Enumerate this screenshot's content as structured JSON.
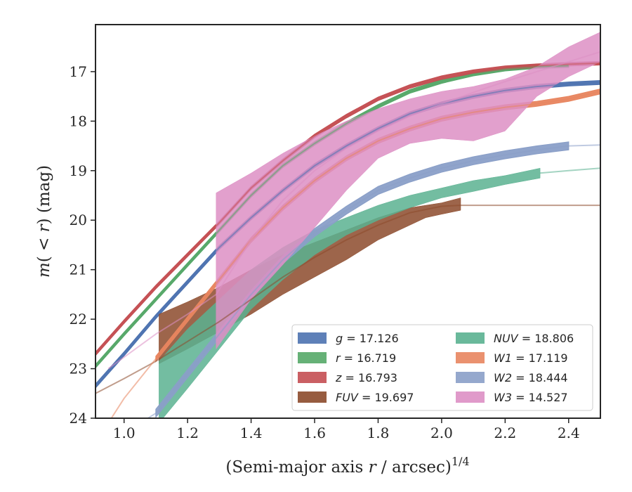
{
  "chart_data": {
    "type": "line",
    "xlabel": "(Semi-major axis r / arcsec)^1/4",
    "ylabel": "m(< r) (mag)",
    "xlim": [
      0.91,
      2.5
    ],
    "ylim": [
      24.0,
      16.05
    ],
    "y_inverted": true,
    "x_ticks": [
      "1.0",
      "1.2",
      "1.4",
      "1.6",
      "1.8",
      "2.0",
      "2.2",
      "2.4"
    ],
    "y_ticks": [
      "17",
      "18",
      "19",
      "20",
      "21",
      "22",
      "23",
      "24"
    ],
    "grid": false,
    "legend": {
      "placement": "lower-right",
      "columns": 2
    },
    "series": [
      {
        "name": "g = 17.126",
        "label_var": "g",
        "label_val": "= 17.126",
        "color": "#4c72b0",
        "band": {
          "x": [
            0.91,
            1.0,
            1.1,
            1.2,
            1.3,
            1.4,
            1.5,
            1.6,
            1.7,
            1.8,
            1.9,
            2.0,
            2.1,
            2.2,
            2.3,
            2.4,
            2.5
          ],
          "y": [
            23.35,
            22.7,
            21.95,
            21.25,
            20.55,
            19.95,
            19.4,
            18.9,
            18.5,
            18.15,
            17.85,
            17.65,
            17.5,
            17.38,
            17.3,
            17.25,
            17.22
          ],
          "w": 0.08
        },
        "model": {
          "x": [
            0.91,
            1.0,
            1.1,
            1.2,
            1.3,
            1.4,
            1.5,
            1.6,
            1.7,
            1.8,
            1.9,
            2.0,
            2.1,
            2.2,
            2.3,
            2.4,
            2.5
          ],
          "y": [
            23.35,
            22.7,
            21.95,
            21.25,
            20.55,
            19.95,
            19.4,
            18.9,
            18.5,
            18.15,
            17.85,
            17.65,
            17.5,
            17.38,
            17.3,
            17.25,
            17.22
          ]
        }
      },
      {
        "name": "r = 16.719",
        "label_var": "r",
        "label_val": "= 16.719",
        "color": "#55a868",
        "band": {
          "x": [
            0.91,
            1.0,
            1.1,
            1.2,
            1.3,
            1.4,
            1.5,
            1.6,
            1.7,
            1.8,
            1.9,
            2.0,
            2.1,
            2.2,
            2.3,
            2.4
          ],
          "y": [
            22.95,
            22.3,
            21.6,
            20.9,
            20.2,
            19.5,
            18.9,
            18.45,
            18.05,
            17.7,
            17.4,
            17.2,
            17.05,
            16.95,
            16.9,
            16.88
          ],
          "w": 0.07
        },
        "model": {
          "x": [
            0.91,
            1.0,
            1.1,
            1.2,
            1.3,
            1.4,
            1.5,
            1.6,
            1.7,
            1.8,
            1.9,
            2.0,
            2.1,
            2.2,
            2.3,
            2.4
          ],
          "y": [
            22.95,
            22.3,
            21.6,
            20.9,
            20.2,
            19.5,
            18.9,
            18.45,
            18.05,
            17.7,
            17.4,
            17.2,
            17.05,
            16.95,
            16.9,
            16.88
          ]
        }
      },
      {
        "name": "z = 16.793",
        "label_var": "z",
        "label_val": "= 16.793",
        "color": "#c44e52",
        "band": {
          "x": [
            0.91,
            1.0,
            1.1,
            1.2,
            1.3,
            1.4,
            1.5,
            1.6,
            1.7,
            1.8,
            1.9,
            2.0,
            2.1,
            2.2,
            2.3,
            2.4,
            2.5
          ],
          "y": [
            22.7,
            22.05,
            21.35,
            20.7,
            20.05,
            19.35,
            18.8,
            18.3,
            17.9,
            17.55,
            17.3,
            17.12,
            17.0,
            16.92,
            16.88,
            16.85,
            16.83
          ],
          "w": 0.07
        },
        "model": {
          "x": [
            0.91,
            1.0,
            1.1,
            1.2,
            1.3,
            1.4,
            1.5,
            1.6,
            1.7,
            1.8,
            1.9,
            2.0,
            2.1,
            2.2,
            2.3,
            2.4,
            2.5
          ],
          "y": [
            22.7,
            22.05,
            21.35,
            20.7,
            20.05,
            19.35,
            18.8,
            18.3,
            17.9,
            17.55,
            17.3,
            17.12,
            17.0,
            16.92,
            16.88,
            16.85,
            16.83
          ]
        }
      },
      {
        "name": "FUV = 19.697",
        "label_var": "FUV",
        "label_val": "= 19.697",
        "color": "#8c4a2b",
        "band": {
          "x": [
            1.11,
            1.2,
            1.3,
            1.4,
            1.5,
            1.6,
            1.7,
            1.8,
            1.9,
            1.95,
            2.0,
            2.06
          ],
          "y_top": [
            21.9,
            21.65,
            21.35,
            21.0,
            20.7,
            20.45,
            20.2,
            19.95,
            19.75,
            19.7,
            19.65,
            19.55
          ],
          "y_bot": [
            22.9,
            22.6,
            22.25,
            21.9,
            21.5,
            21.15,
            20.8,
            20.4,
            20.1,
            19.95,
            19.88,
            19.8
          ]
        },
        "model": {
          "x": [
            0.91,
            1.0,
            1.1,
            1.2,
            1.3,
            1.4,
            1.5,
            1.6,
            1.7,
            1.8,
            1.9,
            2.0,
            2.06,
            2.2,
            2.4,
            2.5
          ],
          "y": [
            23.5,
            23.2,
            22.85,
            22.45,
            22.05,
            21.6,
            21.15,
            20.75,
            20.4,
            20.1,
            19.85,
            19.72,
            19.7,
            19.7,
            19.7,
            19.7
          ]
        }
      },
      {
        "name": "NUV = 18.806",
        "label_var": "NUV",
        "label_val": "= 18.806",
        "color": "#5ab190",
        "band": {
          "x": [
            1.11,
            1.2,
            1.3,
            1.4,
            1.5,
            1.6,
            1.7,
            1.8,
            1.9,
            2.0,
            2.1,
            2.2,
            2.31
          ],
          "y_top": [
            22.85,
            22.2,
            21.6,
            21.0,
            20.55,
            20.2,
            19.95,
            19.7,
            19.5,
            19.35,
            19.2,
            19.1,
            18.95
          ],
          "y_bot": [
            24.1,
            23.4,
            22.6,
            21.8,
            21.2,
            20.7,
            20.3,
            20.0,
            19.75,
            19.55,
            19.42,
            19.28,
            19.15
          ]
        },
        "model": {
          "x": [
            2.31,
            2.4,
            2.5
          ],
          "y": [
            19.05,
            19.0,
            18.95
          ]
        }
      },
      {
        "name": "W1 = 17.119",
        "label_var": "W1",
        "label_val": "= 17.119",
        "color": "#e8855f",
        "band": {
          "x": [
            1.1,
            1.2,
            1.3,
            1.4,
            1.5,
            1.6,
            1.7,
            1.8,
            1.9,
            2.0,
            2.1,
            2.2,
            2.3,
            2.4,
            2.5
          ],
          "y": [
            22.8,
            22.0,
            21.2,
            20.4,
            19.75,
            19.2,
            18.75,
            18.4,
            18.15,
            17.95,
            17.82,
            17.72,
            17.65,
            17.55,
            17.4
          ],
          "w": 0.1
        },
        "model": {
          "x": [
            0.95,
            1.0,
            1.1,
            1.2,
            1.3,
            1.4,
            1.5,
            1.6,
            1.7,
            1.8,
            1.9,
            2.0,
            2.1,
            2.2,
            2.3,
            2.4,
            2.5
          ],
          "y": [
            24.1,
            23.6,
            22.8,
            22.0,
            21.2,
            20.4,
            19.75,
            19.2,
            18.75,
            18.4,
            18.15,
            17.95,
            17.82,
            17.72,
            17.65,
            17.55,
            17.4
          ]
        }
      },
      {
        "name": "W2 = 18.444",
        "label_var": "W2",
        "label_val": "= 18.444",
        "color": "#8a9fc8",
        "band": {
          "x": [
            1.1,
            1.2,
            1.3,
            1.4,
            1.5,
            1.6,
            1.7,
            1.8,
            1.9,
            2.0,
            2.1,
            2.2,
            2.3,
            2.4
          ],
          "y": [
            23.9,
            23.1,
            22.3,
            21.5,
            20.8,
            20.25,
            19.8,
            19.4,
            19.15,
            18.95,
            18.8,
            18.68,
            18.58,
            18.5
          ],
          "w": 0.16
        },
        "model": {
          "x": [
            1.05,
            1.1,
            1.2,
            1.3,
            1.4,
            1.5,
            1.6,
            1.7,
            1.8,
            1.9,
            2.0,
            2.1,
            2.2,
            2.3,
            2.4,
            2.5
          ],
          "y": [
            24.1,
            23.9,
            23.1,
            22.3,
            21.5,
            20.8,
            20.25,
            19.8,
            19.4,
            19.15,
            18.95,
            18.8,
            18.68,
            18.58,
            18.5,
            18.48
          ]
        }
      },
      {
        "name": "W3 = 14.527",
        "label_var": "W3",
        "label_val": "= 14.527",
        "color": "#dd8fc4",
        "band": {
          "x": [
            1.29,
            1.4,
            1.5,
            1.6,
            1.7,
            1.8,
            1.9,
            2.0,
            2.1,
            2.2,
            2.3,
            2.4,
            2.5
          ],
          "y_top": [
            19.45,
            19.05,
            18.65,
            18.3,
            18.0,
            17.75,
            17.55,
            17.4,
            17.3,
            17.15,
            16.9,
            16.5,
            16.2
          ],
          "y_bot": [
            22.6,
            21.6,
            20.9,
            20.15,
            19.4,
            18.75,
            18.45,
            18.35,
            18.4,
            18.2,
            17.5,
            17.1,
            16.8
          ]
        },
        "model": {
          "x": [
            0.95,
            1.1,
            1.2,
            1.29,
            1.4,
            1.5,
            1.6,
            1.7,
            1.8,
            1.9,
            2.0,
            2.1,
            2.2,
            2.3,
            2.4,
            2.5
          ],
          "y": [
            23.0,
            22.3,
            21.9,
            21.5,
            20.4,
            19.6,
            19.0,
            18.55,
            18.2,
            17.9,
            17.65,
            17.42,
            17.2,
            17.0,
            16.8,
            16.6
          ]
        }
      }
    ]
  }
}
